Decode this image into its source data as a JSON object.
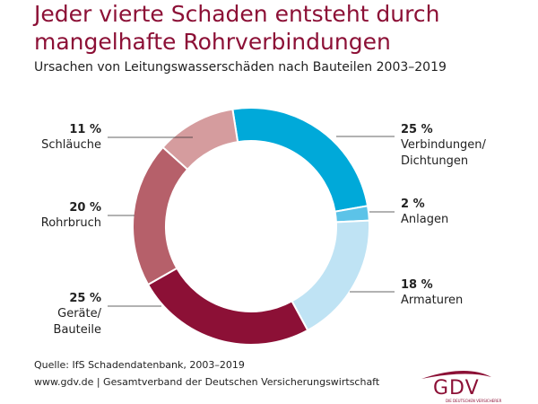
{
  "chart_data": {
    "type": "donut",
    "title": "Jeder vierte Schaden entsteht durch mangelhafte Rohrverbindungen",
    "subtitle": "Ursachen von Leitungswasserschäden nach Bauteilen 2003–2019",
    "categories": [
      "Verbindungen/\nDichtungen",
      "Anlagen",
      "Armaturen",
      "Geräte/\nBauteile",
      "Rohrbruch",
      "Schläuche"
    ],
    "values": [
      25,
      2,
      18,
      25,
      20,
      11
    ],
    "value_labels": [
      "25 %",
      "2 %",
      "18 %",
      "25 %",
      "20 %",
      "11 %"
    ],
    "colors": [
      "#00a9d9",
      "#5cc3e8",
      "#bfe3f4",
      "#8c1036",
      "#b6606a",
      "#d59c9e"
    ]
  },
  "footer": {
    "source": "Quelle: IfS Schadendatenbank, 2003–2019",
    "publisher": "www.gdv.de | Gesamtverband der Deutschen Versicherungswirtschaft",
    "logo": "GDV",
    "logo_tagline": "DIE DEUTSCHEN VERSICHERER"
  }
}
